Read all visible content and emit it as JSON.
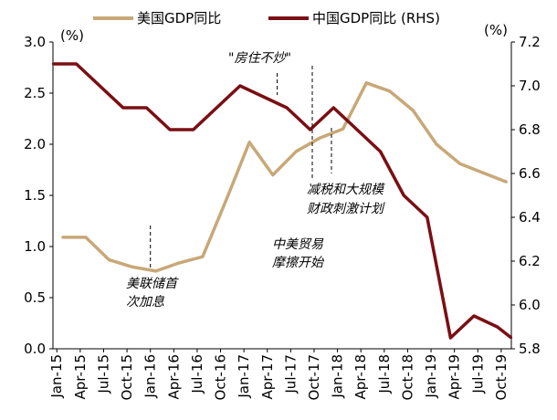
{
  "chart_data": {
    "type": "line",
    "title": "",
    "x": [
      "Jan-15",
      "Apr-15",
      "Jul-15",
      "Oct-15",
      "Jan-16",
      "Apr-16",
      "Jul-16",
      "Oct-16",
      "Jan-17",
      "Apr-17",
      "Jul-17",
      "Oct-17",
      "Jan-18",
      "Apr-18",
      "Jul-18",
      "Oct-18",
      "Jan-19",
      "Apr-19",
      "Jul-19",
      "Oct-19"
    ],
    "x_tick_labels": [
      "Jan-15",
      "Apr-15",
      "Jul-15",
      "Oct-15",
      "Jan-16",
      "Apr-16",
      "Jul-16",
      "Oct-16",
      "Jan-17",
      "Apr-17",
      "Jul-17",
      "Oct-17",
      "Jan-18",
      "Apr-18",
      "Jul-18",
      "Oct-18",
      "Jan-19",
      "Apr-19",
      "Jul-19",
      "Oct-19"
    ],
    "y_left": {
      "unit": "(%)",
      "ylim": [
        0.0,
        3.0
      ],
      "ticks": [
        "0.0",
        "0.5",
        "1.0",
        "1.5",
        "2.0",
        "2.5",
        "3.0"
      ]
    },
    "y_right": {
      "unit": "(%)",
      "ylim": [
        5.8,
        7.2
      ],
      "ticks": [
        "5.8",
        "6.0",
        "6.2",
        "6.4",
        "6.6",
        "6.8",
        "7.0",
        "7.2"
      ]
    },
    "series": [
      {
        "name": "美国GDP同比",
        "axis": "left",
        "color": "#c8a878",
        "x": [
          1,
          2,
          3,
          4,
          5,
          6,
          7,
          8,
          9,
          10,
          11,
          12,
          13,
          14,
          15,
          16,
          17,
          18,
          19,
          20
        ],
        "values": [
          1.09,
          1.09,
          0.87,
          0.8,
          0.76,
          0.84,
          0.9,
          1.45,
          2.02,
          1.7,
          1.93,
          2.06,
          2.15,
          2.6,
          2.52,
          2.33,
          2.0,
          1.81,
          1.72,
          1.63
        ]
      },
      {
        "name": "中国GDP同比 (RHS)",
        "axis": "right",
        "color": "#7a0f14",
        "x": [
          0.6,
          1.6,
          2.6,
          3.6,
          4.6,
          5.6,
          6.6,
          7.6,
          8.6,
          9.6,
          10.6,
          11.6,
          12.6,
          13.6,
          14.6,
          15.6,
          16.6,
          17.6,
          18.6,
          19.6,
          20.2
        ],
        "values": [
          7.1,
          7.1,
          7.0,
          6.9,
          6.9,
          6.8,
          6.8,
          6.9,
          7.0,
          6.95,
          6.9,
          6.8,
          6.9,
          6.8,
          6.7,
          6.5,
          6.4,
          5.85,
          5.95,
          5.9,
          5.85
        ]
      }
    ],
    "legend": {
      "placement": "top",
      "items": [
        "美国GDP同比",
        "中国GDP同比 (RHS)"
      ]
    },
    "annotations": [
      {
        "text_lines": [
          "美联储首",
          "次加息"
        ],
        "at_x": 5
      },
      {
        "text_lines": [
          "\"房住不炒\""
        ],
        "at_x": 10.5
      },
      {
        "text_lines": [
          "中美贸易",
          "摩擦开始"
        ],
        "at_x": 11
      },
      {
        "text_lines": [
          "减税和大规模",
          "财政刺激计划"
        ],
        "at_x": 12.5
      }
    ]
  }
}
